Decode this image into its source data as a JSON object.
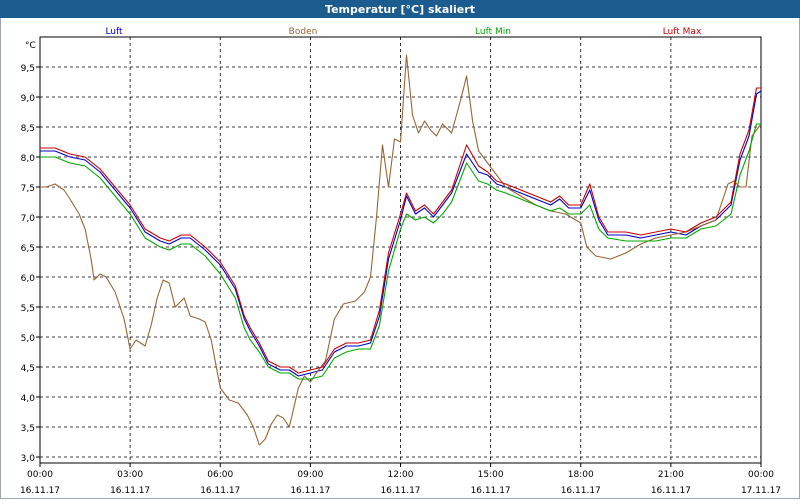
{
  "window": {
    "title": "Temperatur [°C] skaliert"
  },
  "chart_data": {
    "type": "line",
    "title": "Temperatur [°C] skaliert",
    "ylabel": "°C",
    "ylim": [
      2.9,
      10.0
    ],
    "xlim": [
      0,
      24
    ],
    "grid": true,
    "legend_placement": "top",
    "y_ticks": [
      {
        "v": 3.0,
        "label": "3,0"
      },
      {
        "v": 3.5,
        "label": "3,5"
      },
      {
        "v": 4.0,
        "label": "4,0"
      },
      {
        "v": 4.5,
        "label": "4,5"
      },
      {
        "v": 5.0,
        "label": "5,0"
      },
      {
        "v": 5.5,
        "label": "5,5"
      },
      {
        "v": 6.0,
        "label": "6,0"
      },
      {
        "v": 6.5,
        "label": "6,5"
      },
      {
        "v": 7.0,
        "label": "7,0"
      },
      {
        "v": 7.5,
        "label": "7,5"
      },
      {
        "v": 8.0,
        "label": "8,0"
      },
      {
        "v": 8.5,
        "label": "8,5"
      },
      {
        "v": 9.0,
        "label": "9,0"
      },
      {
        "v": 9.5,
        "label": "9,5"
      }
    ],
    "x_ticks": [
      {
        "v": 0,
        "time": "00:00",
        "date": "16.11.17"
      },
      {
        "v": 3,
        "time": "03:00",
        "date": "16.11.17"
      },
      {
        "v": 6,
        "time": "06:00",
        "date": "16.11.17"
      },
      {
        "v": 9,
        "time": "09:00",
        "date": "16.11.17"
      },
      {
        "v": 12,
        "time": "12:00",
        "date": "16.11.17"
      },
      {
        "v": 15,
        "time": "15:00",
        "date": "16.11.17"
      },
      {
        "v": 18,
        "time": "18:00",
        "date": "16.11.17"
      },
      {
        "v": 21,
        "time": "21:00",
        "date": "16.11.17"
      },
      {
        "v": 24,
        "time": "00:00",
        "date": "17.11.17"
      }
    ],
    "series": [
      {
        "name": "Luft",
        "color": "#0000cc",
        "points": [
          [
            0,
            8.1
          ],
          [
            0.5,
            8.1
          ],
          [
            1,
            8.0
          ],
          [
            1.5,
            7.95
          ],
          [
            2,
            7.75
          ],
          [
            2.5,
            7.45
          ],
          [
            3,
            7.15
          ],
          [
            3.5,
            6.75
          ],
          [
            4,
            6.6
          ],
          [
            4.3,
            6.55
          ],
          [
            4.7,
            6.65
          ],
          [
            5,
            6.65
          ],
          [
            5.5,
            6.45
          ],
          [
            6,
            6.2
          ],
          [
            6.5,
            5.8
          ],
          [
            6.8,
            5.3
          ],
          [
            7,
            5.1
          ],
          [
            7.3,
            4.85
          ],
          [
            7.6,
            4.55
          ],
          [
            8,
            4.45
          ],
          [
            8.3,
            4.45
          ],
          [
            8.6,
            4.35
          ],
          [
            9,
            4.4
          ],
          [
            9.4,
            4.45
          ],
          [
            9.8,
            4.75
          ],
          [
            10.2,
            4.85
          ],
          [
            10.6,
            4.85
          ],
          [
            11,
            4.9
          ],
          [
            11.3,
            5.35
          ],
          [
            11.6,
            6.3
          ],
          [
            12,
            6.95
          ],
          [
            12.2,
            7.35
          ],
          [
            12.5,
            7.05
          ],
          [
            12.8,
            7.15
          ],
          [
            13.1,
            7.0
          ],
          [
            13.4,
            7.2
          ],
          [
            13.7,
            7.4
          ],
          [
            14.2,
            8.05
          ],
          [
            14.6,
            7.75
          ],
          [
            14.9,
            7.7
          ],
          [
            15.2,
            7.55
          ],
          [
            15.5,
            7.5
          ],
          [
            16,
            7.4
          ],
          [
            16.5,
            7.3
          ],
          [
            17,
            7.2
          ],
          [
            17.3,
            7.3
          ],
          [
            17.6,
            7.15
          ],
          [
            18,
            7.15
          ],
          [
            18.3,
            7.45
          ],
          [
            18.6,
            6.95
          ],
          [
            18.9,
            6.7
          ],
          [
            19.5,
            6.7
          ],
          [
            20,
            6.65
          ],
          [
            20.5,
            6.7
          ],
          [
            21,
            6.75
          ],
          [
            21.5,
            6.7
          ],
          [
            22,
            6.85
          ],
          [
            22.5,
            6.95
          ],
          [
            23,
            7.2
          ],
          [
            23.3,
            7.95
          ],
          [
            23.6,
            8.35
          ],
          [
            23.85,
            9.05
          ],
          [
            24,
            9.1
          ]
        ]
      },
      {
        "name": "Boden",
        "color": "#996633",
        "points": [
          [
            0,
            7.5
          ],
          [
            0.2,
            7.5
          ],
          [
            0.5,
            7.55
          ],
          [
            0.8,
            7.45
          ],
          [
            1,
            7.3
          ],
          [
            1.3,
            7.05
          ],
          [
            1.5,
            6.8
          ],
          [
            1.7,
            6.3
          ],
          [
            1.8,
            5.95
          ],
          [
            2,
            6.05
          ],
          [
            2.2,
            6.0
          ],
          [
            2.5,
            5.75
          ],
          [
            2.8,
            5.3
          ],
          [
            3,
            4.8
          ],
          [
            3.2,
            4.95
          ],
          [
            3.5,
            4.85
          ],
          [
            3.7,
            5.2
          ],
          [
            3.9,
            5.65
          ],
          [
            4.1,
            5.95
          ],
          [
            4.3,
            5.9
          ],
          [
            4.5,
            5.5
          ],
          [
            4.8,
            5.65
          ],
          [
            5,
            5.35
          ],
          [
            5.3,
            5.3
          ],
          [
            5.5,
            5.25
          ],
          [
            5.7,
            4.95
          ],
          [
            6,
            4.15
          ],
          [
            6.3,
            3.95
          ],
          [
            6.6,
            3.9
          ],
          [
            6.9,
            3.7
          ],
          [
            7.1,
            3.5
          ],
          [
            7.3,
            3.2
          ],
          [
            7.5,
            3.3
          ],
          [
            7.7,
            3.55
          ],
          [
            7.9,
            3.7
          ],
          [
            8.1,
            3.65
          ],
          [
            8.3,
            3.5
          ],
          [
            8.6,
            4.15
          ],
          [
            8.8,
            4.35
          ],
          [
            9,
            4.25
          ],
          [
            9.2,
            4.4
          ],
          [
            9.5,
            4.6
          ],
          [
            9.8,
            5.3
          ],
          [
            10.1,
            5.55
          ],
          [
            10.5,
            5.6
          ],
          [
            10.8,
            5.75
          ],
          [
            11,
            6.0
          ],
          [
            11.2,
            7.0
          ],
          [
            11.4,
            8.2
          ],
          [
            11.6,
            7.5
          ],
          [
            11.8,
            8.3
          ],
          [
            12,
            8.25
          ],
          [
            12.2,
            9.7
          ],
          [
            12.4,
            8.7
          ],
          [
            12.6,
            8.4
          ],
          [
            12.8,
            8.6
          ],
          [
            13,
            8.45
          ],
          [
            13.2,
            8.35
          ],
          [
            13.4,
            8.55
          ],
          [
            13.7,
            8.4
          ],
          [
            14,
            8.95
          ],
          [
            14.2,
            9.35
          ],
          [
            14.4,
            8.6
          ],
          [
            14.6,
            8.1
          ],
          [
            14.9,
            7.9
          ],
          [
            15.2,
            7.7
          ],
          [
            15.5,
            7.5
          ],
          [
            16,
            7.35
          ],
          [
            16.5,
            7.2
          ],
          [
            17,
            7.1
          ],
          [
            17.5,
            7.05
          ],
          [
            18,
            6.9
          ],
          [
            18.2,
            6.5
          ],
          [
            18.5,
            6.35
          ],
          [
            19,
            6.3
          ],
          [
            19.5,
            6.4
          ],
          [
            20,
            6.55
          ],
          [
            20.5,
            6.65
          ],
          [
            21,
            6.7
          ],
          [
            21.5,
            6.75
          ],
          [
            22,
            6.85
          ],
          [
            22.5,
            6.95
          ],
          [
            22.9,
            7.55
          ],
          [
            23.1,
            7.6
          ],
          [
            23.3,
            7.5
          ],
          [
            23.5,
            7.5
          ],
          [
            23.7,
            8.35
          ],
          [
            24,
            8.55
          ]
        ]
      },
      {
        "name": "Luft Min",
        "color": "#00aa00",
        "points": [
          [
            0,
            8.0
          ],
          [
            0.5,
            8.0
          ],
          [
            1,
            7.9
          ],
          [
            1.5,
            7.85
          ],
          [
            2,
            7.65
          ],
          [
            2.5,
            7.35
          ],
          [
            3,
            7.05
          ],
          [
            3.5,
            6.65
          ],
          [
            4,
            6.5
          ],
          [
            4.3,
            6.45
          ],
          [
            4.7,
            6.55
          ],
          [
            5,
            6.55
          ],
          [
            5.5,
            6.35
          ],
          [
            6,
            6.05
          ],
          [
            6.5,
            5.65
          ],
          [
            6.8,
            5.15
          ],
          [
            7,
            4.95
          ],
          [
            7.3,
            4.75
          ],
          [
            7.6,
            4.5
          ],
          [
            8,
            4.4
          ],
          [
            8.3,
            4.4
          ],
          [
            8.6,
            4.3
          ],
          [
            9,
            4.3
          ],
          [
            9.4,
            4.35
          ],
          [
            9.8,
            4.65
          ],
          [
            10.2,
            4.75
          ],
          [
            10.6,
            4.8
          ],
          [
            11,
            4.8
          ],
          [
            11.3,
            5.2
          ],
          [
            11.6,
            6.1
          ],
          [
            12,
            6.8
          ],
          [
            12.2,
            7.05
          ],
          [
            12.5,
            6.95
          ],
          [
            12.8,
            7.0
          ],
          [
            13.1,
            6.9
          ],
          [
            13.4,
            7.05
          ],
          [
            13.7,
            7.25
          ],
          [
            14.2,
            7.9
          ],
          [
            14.6,
            7.6
          ],
          [
            14.9,
            7.55
          ],
          [
            15.2,
            7.45
          ],
          [
            15.5,
            7.4
          ],
          [
            16,
            7.3
          ],
          [
            16.5,
            7.2
          ],
          [
            17,
            7.1
          ],
          [
            17.3,
            7.15
          ],
          [
            17.6,
            7.05
          ],
          [
            18,
            7.05
          ],
          [
            18.3,
            7.2
          ],
          [
            18.6,
            6.8
          ],
          [
            18.9,
            6.65
          ],
          [
            19.5,
            6.6
          ],
          [
            20,
            6.6
          ],
          [
            20.5,
            6.6
          ],
          [
            21,
            6.65
          ],
          [
            21.5,
            6.65
          ],
          [
            22,
            6.8
          ],
          [
            22.5,
            6.85
          ],
          [
            23,
            7.05
          ],
          [
            23.3,
            7.7
          ],
          [
            23.6,
            8.1
          ],
          [
            23.85,
            8.55
          ],
          [
            24,
            8.55
          ]
        ]
      },
      {
        "name": "Luft Max",
        "color": "#cc0000",
        "points": [
          [
            0,
            8.15
          ],
          [
            0.5,
            8.15
          ],
          [
            1,
            8.05
          ],
          [
            1.5,
            8.0
          ],
          [
            2,
            7.8
          ],
          [
            2.5,
            7.5
          ],
          [
            3,
            7.2
          ],
          [
            3.5,
            6.8
          ],
          [
            4,
            6.65
          ],
          [
            4.3,
            6.6
          ],
          [
            4.7,
            6.7
          ],
          [
            5,
            6.7
          ],
          [
            5.5,
            6.5
          ],
          [
            6,
            6.25
          ],
          [
            6.5,
            5.85
          ],
          [
            6.8,
            5.35
          ],
          [
            7,
            5.15
          ],
          [
            7.3,
            4.9
          ],
          [
            7.6,
            4.6
          ],
          [
            8,
            4.5
          ],
          [
            8.3,
            4.5
          ],
          [
            8.6,
            4.4
          ],
          [
            9,
            4.45
          ],
          [
            9.4,
            4.5
          ],
          [
            9.8,
            4.8
          ],
          [
            10.2,
            4.9
          ],
          [
            10.6,
            4.9
          ],
          [
            11,
            4.95
          ],
          [
            11.3,
            5.45
          ],
          [
            11.6,
            6.4
          ],
          [
            12,
            7.05
          ],
          [
            12.2,
            7.4
          ],
          [
            12.5,
            7.1
          ],
          [
            12.8,
            7.2
          ],
          [
            13.1,
            7.05
          ],
          [
            13.4,
            7.25
          ],
          [
            13.7,
            7.45
          ],
          [
            14.2,
            8.2
          ],
          [
            14.6,
            7.85
          ],
          [
            14.9,
            7.75
          ],
          [
            15.2,
            7.6
          ],
          [
            15.5,
            7.55
          ],
          [
            16,
            7.45
          ],
          [
            16.5,
            7.35
          ],
          [
            17,
            7.25
          ],
          [
            17.3,
            7.35
          ],
          [
            17.6,
            7.2
          ],
          [
            18,
            7.2
          ],
          [
            18.3,
            7.55
          ],
          [
            18.6,
            7.0
          ],
          [
            18.9,
            6.75
          ],
          [
            19.5,
            6.75
          ],
          [
            20,
            6.7
          ],
          [
            20.5,
            6.75
          ],
          [
            21,
            6.8
          ],
          [
            21.5,
            6.75
          ],
          [
            22,
            6.9
          ],
          [
            22.5,
            7.0
          ],
          [
            23,
            7.25
          ],
          [
            23.3,
            8.05
          ],
          [
            23.6,
            8.45
          ],
          [
            23.85,
            9.15
          ],
          [
            24,
            9.15
          ]
        ]
      }
    ]
  }
}
